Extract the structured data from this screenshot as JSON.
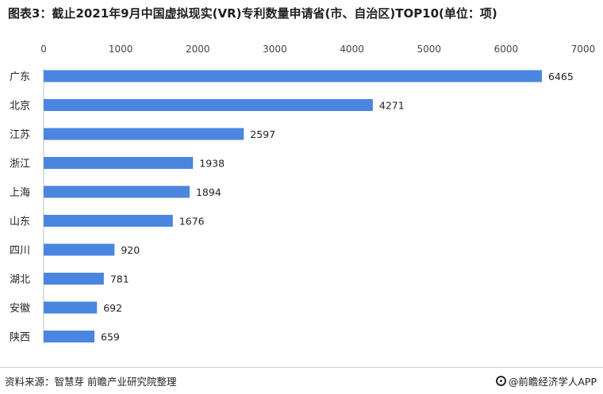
{
  "title": "图表3：截止2021年9月中国虚拟现实(VR)专利数量申请省(市、自治区)TOP10(单位：项)",
  "footer": {
    "source": "资料来源：智慧芽 前瞻产业研究院整理",
    "brand": "@前瞻经济学人APP",
    "brand_icon": "qianzhan-logo-icon"
  },
  "colors": {
    "bar": "#4a86e0",
    "text": "#222222"
  },
  "chart_data": {
    "type": "bar",
    "orientation": "horizontal",
    "title": "图表3：截止2021年9月中国虚拟现实(VR)专利数量申请省(市、自治区)TOP10(单位：项)",
    "categories": [
      "广东",
      "北京",
      "江苏",
      "浙江",
      "上海",
      "山东",
      "四川",
      "湖北",
      "安徽",
      "陕西"
    ],
    "values": [
      6465,
      4271,
      2597,
      1938,
      1894,
      1676,
      920,
      781,
      692,
      659
    ],
    "xlim": [
      0,
      7000
    ],
    "xticks": [
      0,
      1000,
      2000,
      3000,
      4000,
      5000,
      6000,
      7000
    ],
    "xaxis_position": "top",
    "grid": false,
    "legend": "none",
    "data_labels": true
  }
}
